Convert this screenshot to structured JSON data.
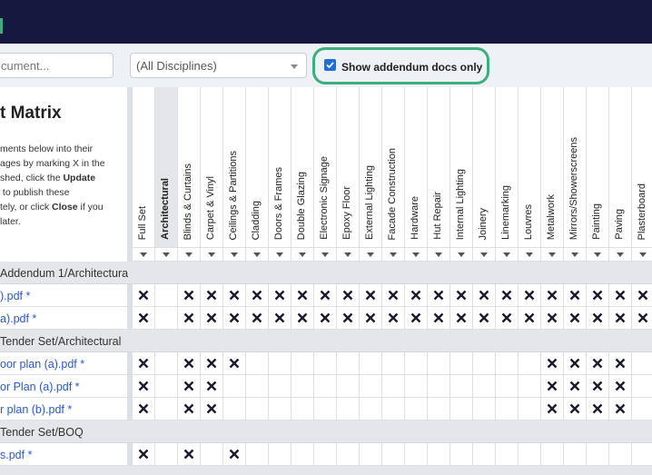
{
  "toolbar": {
    "search_placeholder": "cument...",
    "discipline_select": "(All Disciplines)",
    "addendum_checkbox": {
      "label": "Show addendum docs only",
      "checked": true
    }
  },
  "panel": {
    "title": "t Matrix",
    "lines": [
      [
        {
          "text": "ments below into their"
        }
      ],
      [
        {
          "text": "ages by marking X in the"
        }
      ],
      [
        {
          "text": "shed, click the "
        },
        {
          "text": "Update",
          "bold": true
        }
      ],
      [
        {
          "text": " to publish these"
        }
      ],
      [
        {
          "text": "tely, or click "
        },
        {
          "text": "Close",
          "bold": true
        },
        {
          "text": " if you"
        }
      ],
      [
        {
          "text": "later."
        }
      ]
    ]
  },
  "columns": [
    "Full Set",
    "Architectural",
    "Blinds & Curtains",
    "Carpet & Vinyl",
    "Ceilings & Partitions",
    "Cladding",
    "Doors & Frames",
    "Double Glazing",
    "Electronic Signage",
    "Epoxy Floor",
    "External Lighting",
    "Facade Construction",
    "Hardware",
    "Hut Repair",
    "Internal Lighting",
    "Joinery",
    "Linemarking",
    "Louvres",
    "Metalwork",
    "Mirrors/Showerscreens",
    "Painting",
    "Paving",
    "Plasterboard"
  ],
  "active_column": "Architectural",
  "groups": [
    {
      "name": "Addendum 1/Architectura",
      "rows": [
        {
          "name": ").pdf *",
          "marked": [
            "Full Set",
            "Blinds & Curtains",
            "Carpet & Vinyl",
            "Ceilings & Partitions",
            "Cladding",
            "Doors & Frames",
            "Double Glazing",
            "Electronic Signage",
            "Epoxy Floor",
            "External Lighting",
            "Facade Construction",
            "Hardware",
            "Hut Repair",
            "Internal Lighting",
            "Joinery",
            "Linemarking",
            "Louvres",
            "Metalwork",
            "Mirrors/Showerscreens",
            "Painting",
            "Paving",
            "Plasterboard"
          ]
        },
        {
          "name": "a).pdf *",
          "marked": [
            "Full Set",
            "Blinds & Curtains",
            "Carpet & Vinyl",
            "Ceilings & Partitions",
            "Cladding",
            "Doors & Frames",
            "Double Glazing",
            "Electronic Signage",
            "Epoxy Floor",
            "External Lighting",
            "Facade Construction",
            "Hardware",
            "Hut Repair",
            "Internal Lighting",
            "Joinery",
            "Linemarking",
            "Louvres",
            "Metalwork",
            "Mirrors/Showerscreens",
            "Painting",
            "Paving",
            "Plasterboard"
          ]
        }
      ]
    },
    {
      "name": "Tender Set/Architectural",
      "rows": [
        {
          "name": "oor plan (a).pdf *",
          "marked": [
            "Full Set",
            "Blinds & Curtains",
            "Carpet & Vinyl",
            "Ceilings & Partitions",
            "Metalwork",
            "Mirrors/Showerscreens",
            "Painting",
            "Paving"
          ]
        },
        {
          "name": "or Plan (a).pdf *",
          "marked": [
            "Full Set",
            "Blinds & Curtains",
            "Carpet & Vinyl",
            "Metalwork",
            "Mirrors/Showerscreens",
            "Painting",
            "Paving"
          ]
        },
        {
          "name": "r plan (b).pdf *",
          "marked": [
            "Full Set",
            "Blinds & Curtains",
            "Carpet & Vinyl",
            "Metalwork",
            "Mirrors/Showerscreens",
            "Painting",
            "Paving"
          ]
        }
      ]
    },
    {
      "name": "Tender Set/BOQ",
      "rows": [
        {
          "name": "s.pdf *",
          "marked": [
            "Full Set",
            "Blinds & Curtains",
            "Ceilings & Partitions"
          ]
        }
      ]
    }
  ]
}
